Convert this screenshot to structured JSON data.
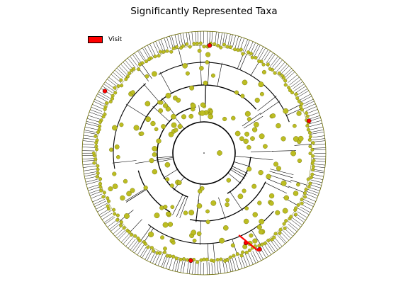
{
  "title": "Significantly Represented Taxa",
  "legend": {
    "label": "Visit",
    "color": "#ff0000"
  },
  "colors": {
    "node": "#bcbd22",
    "node_edge": "#6b6b00",
    "highlight": "#ff0000",
    "ring": "#6b6b00"
  }
}
